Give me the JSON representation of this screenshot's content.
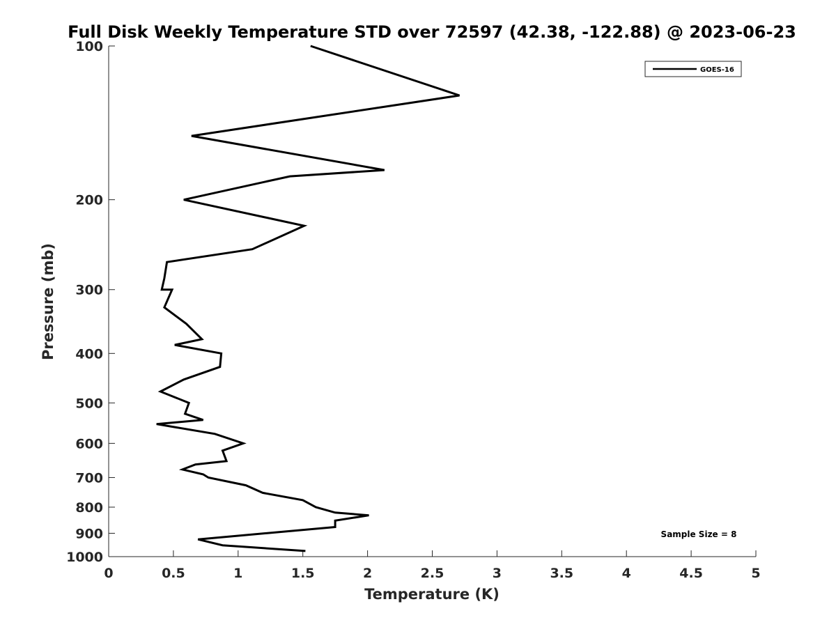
{
  "chart_data": {
    "type": "line",
    "title": "Full Disk Weekly Temperature STD over 72597 (42.38, -122.88) @ 2023-06-23",
    "xlabel": "Temperature (K)",
    "ylabel": "Pressure (mb)",
    "xlim": [
      0,
      5
    ],
    "ylim": [
      100,
      1000
    ],
    "y_scale": "log",
    "y_reversed": true,
    "xticks": [
      0,
      0.5,
      1,
      1.5,
      2,
      2.5,
      3,
      3.5,
      4,
      4.5,
      5
    ],
    "xtick_labels": [
      "0",
      "0.5",
      "1",
      "1.5",
      "2",
      "2.5",
      "3",
      "3.5",
      "4",
      "4.5",
      "5"
    ],
    "yticks": [
      100,
      200,
      300,
      400,
      500,
      600,
      700,
      800,
      900,
      1000
    ],
    "ytick_labels": [
      "100",
      "200",
      "300",
      "400",
      "500",
      "600",
      "700",
      "800",
      "900",
      "1000"
    ],
    "grid": false,
    "legend_position": "top-right",
    "annotation": "Sample Size = 8",
    "series": [
      {
        "name": "GOES-16",
        "color": "#000000",
        "x": [
          1.56,
          2.71,
          0.64,
          2.13,
          1.4,
          0.58,
          1.51,
          1.11,
          0.45,
          0.43,
          0.41,
          0.49,
          0.43,
          0.6,
          0.72,
          0.51,
          0.87,
          0.86,
          0.58,
          0.4,
          0.62,
          0.59,
          0.73,
          0.37,
          0.82,
          1.04,
          0.88,
          0.91,
          0.67,
          0.57,
          0.73,
          0.77,
          1.06,
          1.19,
          1.5,
          1.6,
          1.75,
          2.01,
          1.75,
          1.75,
          0.69,
          0.88,
          1.52
        ],
        "y": [
          100,
          125,
          150,
          175,
          180,
          200,
          225,
          250,
          265,
          285,
          300,
          300,
          325,
          350,
          375,
          385,
          400,
          425,
          450,
          475,
          500,
          525,
          540,
          550,
          575,
          600,
          620,
          650,
          660,
          675,
          690,
          700,
          725,
          750,
          775,
          800,
          820,
          830,
          850,
          875,
          925,
          950,
          975
        ]
      }
    ]
  }
}
